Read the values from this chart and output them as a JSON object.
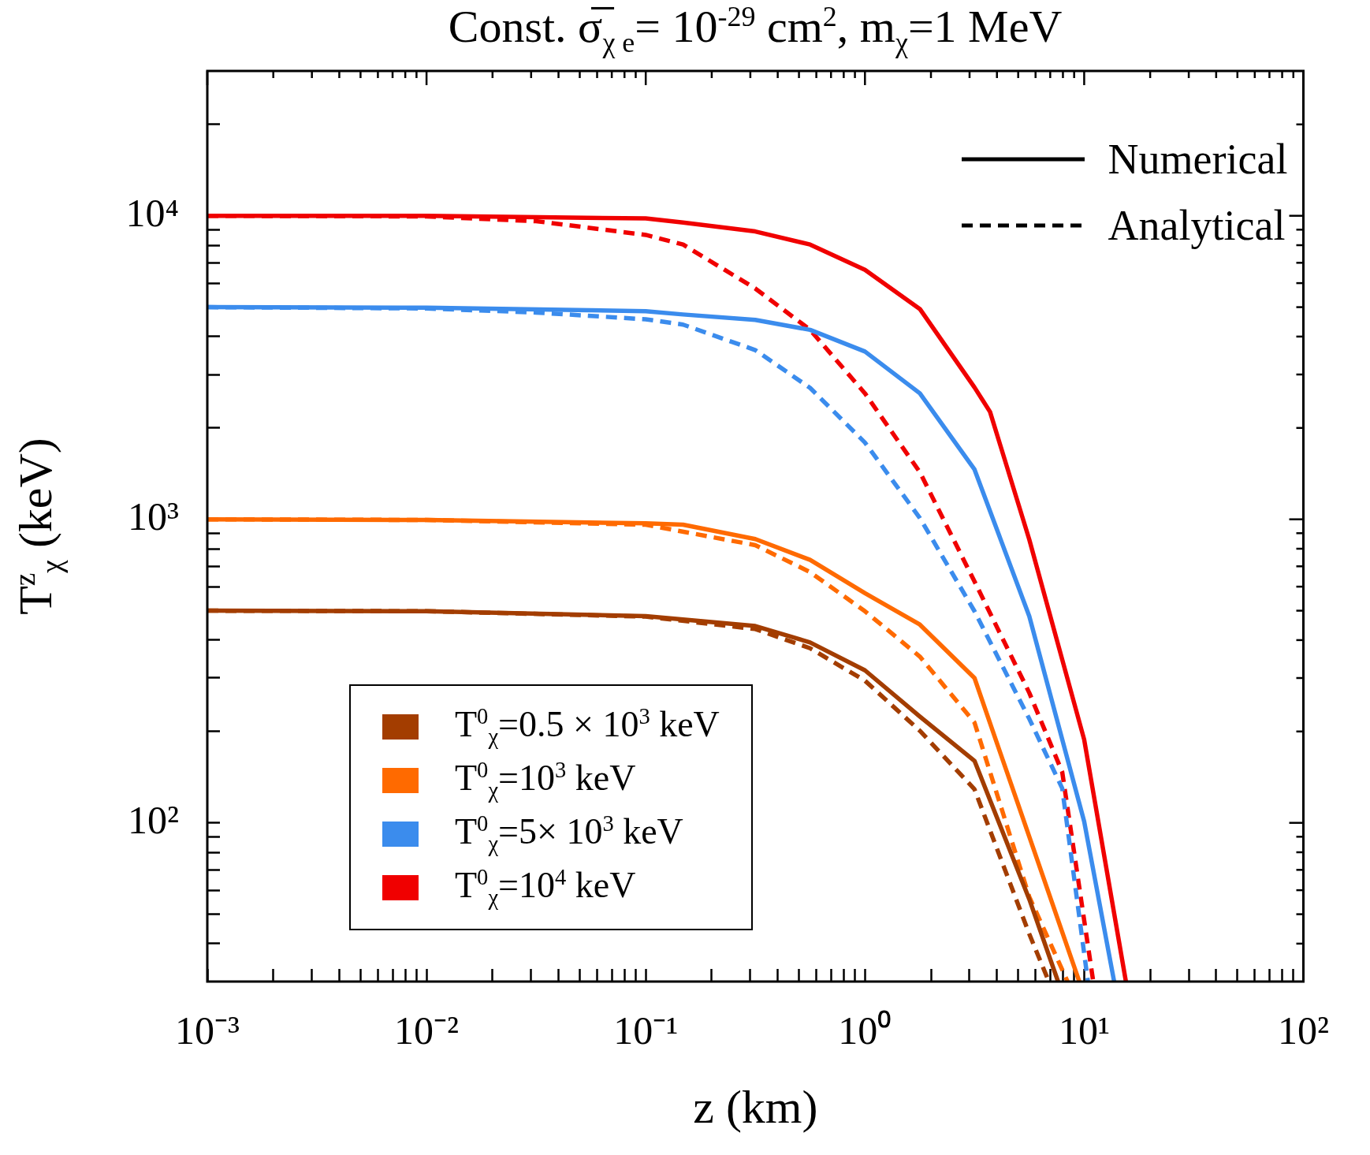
{
  "chart_data": {
    "type": "line",
    "title": "Const. σ̅$_{χ e}$= 10$^{-29}$ cm$^{2}$, m$_{χ}$=1 MeV",
    "xlabel": "z (km)",
    "ylabel": "T$^{z}$$_{χ}$ (keV)",
    "log": "xy",
    "grid": false,
    "legend": "bottom left",
    "marker": "none",
    "xlim": [
      0.001,
      100
    ],
    "ylim": [
      30,
      30000
    ],
    "xticks": [
      {
        "value": 0.001,
        "label": "10⁻³"
      },
      {
        "value": 0.002,
        "label": null
      },
      {
        "value": 0.003,
        "label": null
      },
      {
        "value": 0.004,
        "label": null
      },
      {
        "value": 0.005,
        "label": null
      },
      {
        "value": 0.006,
        "label": null
      },
      {
        "value": 0.007,
        "label": null
      },
      {
        "value": 0.008,
        "label": null
      },
      {
        "value": 0.009,
        "label": null
      },
      {
        "value": 0.01,
        "label": "10⁻²"
      },
      {
        "value": 0.02,
        "label": null
      },
      {
        "value": 0.03,
        "label": null
      },
      {
        "value": 0.04,
        "label": null
      },
      {
        "value": 0.05,
        "label": null
      },
      {
        "value": 0.06,
        "label": null
      },
      {
        "value": 0.07,
        "label": null
      },
      {
        "value": 0.08,
        "label": null
      },
      {
        "value": 0.09,
        "label": null
      },
      {
        "value": 0.1,
        "label": "10⁻¹"
      },
      {
        "value": 0.2,
        "label": null
      },
      {
        "value": 0.3,
        "label": null
      },
      {
        "value": 0.4,
        "label": null
      },
      {
        "value": 0.5,
        "label": null
      },
      {
        "value": 0.6,
        "label": null
      },
      {
        "value": 0.7,
        "label": null
      },
      {
        "value": 0.8,
        "label": null
      },
      {
        "value": 0.9,
        "label": null
      },
      {
        "value": 1,
        "label": "10⁰"
      },
      {
        "value": 2,
        "label": null
      },
      {
        "value": 3,
        "label": null
      },
      {
        "value": 4,
        "label": null
      },
      {
        "value": 5,
        "label": null
      },
      {
        "value": 6,
        "label": null
      },
      {
        "value": 7,
        "label": null
      },
      {
        "value": 8,
        "label": null
      },
      {
        "value": 9,
        "label": null
      },
      {
        "value": 10,
        "label": "10¹"
      },
      {
        "value": 20,
        "label": null
      },
      {
        "value": 30,
        "label": null
      },
      {
        "value": 40,
        "label": null
      },
      {
        "value": 50,
        "label": null
      },
      {
        "value": 60,
        "label": null
      },
      {
        "value": 70,
        "label": null
      },
      {
        "value": 80,
        "label": null
      },
      {
        "value": 90,
        "label": null
      },
      {
        "value": 100,
        "label": "10²"
      }
    ],
    "yticks": [
      {
        "value": 40,
        "label": null
      },
      {
        "value": 50,
        "label": null
      },
      {
        "value": 60,
        "label": null
      },
      {
        "value": 70,
        "label": null
      },
      {
        "value": 80,
        "label": null
      },
      {
        "value": 90,
        "label": null
      },
      {
        "value": 100,
        "label": "10²"
      },
      {
        "value": 200,
        "label": null
      },
      {
        "value": 300,
        "label": null
      },
      {
        "value": 400,
        "label": null
      },
      {
        "value": 500,
        "label": null
      },
      {
        "value": 600,
        "label": null
      },
      {
        "value": 700,
        "label": null
      },
      {
        "value": 800,
        "label": null
      },
      {
        "value": 900,
        "label": null
      },
      {
        "value": 1000,
        "label": "10³"
      },
      {
        "value": 2000,
        "label": null
      },
      {
        "value": 3000,
        "label": null
      },
      {
        "value": 4000,
        "label": null
      },
      {
        "value": 5000,
        "label": null
      },
      {
        "value": 6000,
        "label": null
      },
      {
        "value": 7000,
        "label": null
      },
      {
        "value": 8000,
        "label": null
      },
      {
        "value": 9000,
        "label": null
      },
      {
        "value": 10000,
        "label": "10⁴"
      },
      {
        "value": 20000,
        "label": null
      }
    ],
    "annotations": [
      "Numerical",
      "Analytical"
    ],
    "series": [
      {
        "name": "T$^{0}$$_{χ}$=0.5 × 10$^{3}$ keV",
        "color": "#a33d00",
        "line_style": "solid",
        "x": [
          0.001,
          0.01,
          0.1,
          0.316,
          0.562,
          1,
          1.78,
          3.16,
          5.62,
          7.6
        ],
        "values": [
          500,
          498,
          480,
          445,
          393,
          318,
          224,
          160,
          56,
          30
        ]
      },
      {
        "color": "#a33d00",
        "line_style": "dashed",
        "x": [
          0.001,
          0.01,
          0.1,
          0.316,
          0.562,
          1,
          1.78,
          3.16,
          5.62,
          6.9
        ],
        "values": [
          500,
          498,
          478,
          435,
          376,
          294,
          201,
          129,
          43,
          30
        ]
      },
      {
        "name": "T$^{0}$$_{χ}$=10$^{3}$ keV",
        "color": "#ff6a00",
        "line_style": "solid",
        "x": [
          0.001,
          0.01,
          0.1,
          0.148,
          0.316,
          0.562,
          1,
          1.78,
          3.16,
          3.98,
          5.62,
          9.5
        ],
        "values": [
          1000,
          995,
          970,
          960,
          861,
          735,
          571,
          450,
          300,
          185,
          90,
          30
        ]
      },
      {
        "color": "#ff6a00",
        "line_style": "dashed",
        "x": [
          0.001,
          0.01,
          0.1,
          0.316,
          0.562,
          1,
          1.78,
          3.16,
          5.62,
          8.4
        ],
        "values": [
          1000,
          995,
          960,
          822,
          670,
          498,
          353,
          214,
          57,
          30
        ]
      },
      {
        "name": "T$^{0}$$_{χ}$=5× 10$^{3}$ keV",
        "color": "#3b8ced",
        "line_style": "solid",
        "x": [
          0.001,
          0.01,
          0.1,
          0.148,
          0.316,
          0.562,
          1,
          1.78,
          3.16,
          5.62,
          10,
          13.7
        ],
        "values": [
          5000,
          4980,
          4850,
          4730,
          4540,
          4210,
          3570,
          2600,
          1460,
          479,
          101,
          30
        ]
      },
      {
        "color": "#3b8ced",
        "line_style": "dashed",
        "x": [
          0.001,
          0.01,
          0.0316,
          0.1,
          0.148,
          0.316,
          0.562,
          1,
          1.78,
          3.16,
          5.62,
          7.94,
          10.4
        ],
        "values": [
          5000,
          4950,
          4800,
          4560,
          4380,
          3610,
          2710,
          1790,
          1010,
          498,
          220,
          130,
          30
        ]
      },
      {
        "name": "T$^{0}$$_{χ}$=10$^{4}$ keV",
        "color": "#f00000",
        "line_style": "solid",
        "x": [
          0.001,
          0.01,
          0.1,
          0.148,
          0.316,
          0.562,
          1,
          1.78,
          3.16,
          3.72,
          5.62,
          10,
          15.5
        ],
        "values": [
          10000,
          9990,
          9800,
          9500,
          8880,
          8040,
          6640,
          4930,
          2720,
          2260,
          857,
          188,
          30
        ]
      },
      {
        "color": "#f00000",
        "line_style": "dashed",
        "x": [
          0.001,
          0.01,
          0.0316,
          0.1,
          0.148,
          0.316,
          0.562,
          1,
          1.78,
          3.16,
          5.62,
          7.94,
          11
        ],
        "values": [
          10000,
          9950,
          9600,
          8650,
          8040,
          5760,
          4210,
          2600,
          1430,
          624,
          268,
          147,
          30
        ]
      }
    ]
  }
}
